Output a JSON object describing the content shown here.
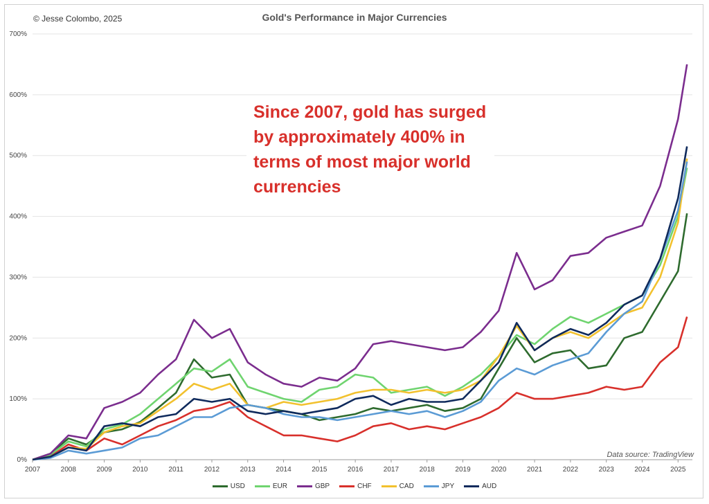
{
  "credit": "© Jesse Colombo, 2025",
  "annotation": "Since 2007, gold has surged by approximately 400% in terms of most major world currencies",
  "source_note": "Data source: TradingView",
  "chart_data": {
    "type": "line",
    "title": "Gold's Performance in Major Currencies",
    "xlabel": "",
    "ylabel": "",
    "xlim": [
      2007,
      2025.4
    ],
    "ylim": [
      0,
      700
    ],
    "x_ticks": [
      "2007",
      "2008",
      "2009",
      "2010",
      "2011",
      "2012",
      "2013",
      "2014",
      "2015",
      "2016",
      "2017",
      "2018",
      "2019",
      "2020",
      "2021",
      "2022",
      "2023",
      "2024",
      "2025"
    ],
    "y_ticks": [
      "0%",
      "100%",
      "200%",
      "300%",
      "400%",
      "500%",
      "600%",
      "700%"
    ],
    "grid": "horizontal",
    "legend_position": "bottom",
    "x": [
      2007,
      2007.5,
      2008,
      2008.5,
      2009,
      2009.5,
      2010,
      2010.5,
      2011,
      2011.5,
      2012,
      2012.5,
      2013,
      2013.5,
      2014,
      2014.5,
      2015,
      2015.5,
      2016,
      2016.5,
      2017,
      2017.5,
      2018,
      2018.5,
      2019,
      2019.5,
      2020,
      2020.5,
      2021,
      2021.5,
      2022,
      2022.5,
      2023,
      2023.5,
      2024,
      2024.5,
      2025,
      2025.25
    ],
    "series": [
      {
        "name": "USD",
        "color": "#2e6b2e",
        "values": [
          0,
          10,
          35,
          25,
          45,
          50,
          62,
          85,
          110,
          165,
          135,
          140,
          90,
          85,
          80,
          75,
          65,
          70,
          75,
          85,
          80,
          85,
          90,
          80,
          85,
          100,
          150,
          200,
          160,
          175,
          180,
          150,
          155,
          200,
          210,
          260,
          310,
          405
        ]
      },
      {
        "name": "EUR",
        "color": "#6fd46f",
        "values": [
          0,
          8,
          30,
          22,
          50,
          58,
          75,
          100,
          125,
          150,
          145,
          165,
          120,
          110,
          100,
          95,
          115,
          120,
          140,
          135,
          110,
          115,
          120,
          105,
          120,
          140,
          170,
          205,
          190,
          215,
          235,
          225,
          240,
          255,
          270,
          320,
          400,
          480
        ]
      },
      {
        "name": "GBP",
        "color": "#7b2d8e",
        "values": [
          0,
          10,
          40,
          35,
          85,
          95,
          110,
          140,
          165,
          230,
          200,
          215,
          160,
          140,
          125,
          120,
          135,
          130,
          150,
          190,
          195,
          190,
          185,
          180,
          185,
          210,
          245,
          340,
          280,
          295,
          335,
          340,
          365,
          375,
          385,
          450,
          560,
          650
        ]
      },
      {
        "name": "CHF",
        "color": "#d8302b",
        "values": [
          0,
          5,
          25,
          15,
          35,
          25,
          40,
          55,
          65,
          80,
          85,
          95,
          70,
          55,
          40,
          40,
          35,
          30,
          40,
          55,
          60,
          50,
          55,
          50,
          60,
          70,
          85,
          110,
          100,
          100,
          105,
          110,
          120,
          115,
          120,
          160,
          185,
          235
        ]
      },
      {
        "name": "CAD",
        "color": "#f2c12e",
        "values": [
          0,
          5,
          20,
          18,
          45,
          55,
          60,
          80,
          100,
          125,
          115,
          125,
          90,
          85,
          95,
          90,
          95,
          100,
          110,
          115,
          115,
          110,
          115,
          110,
          115,
          130,
          170,
          220,
          180,
          200,
          210,
          200,
          220,
          240,
          250,
          300,
          390,
          495
        ]
      },
      {
        "name": "JPY",
        "color": "#5b9bd5",
        "values": [
          0,
          3,
          15,
          10,
          15,
          20,
          35,
          40,
          55,
          70,
          70,
          85,
          90,
          85,
          75,
          70,
          70,
          65,
          70,
          75,
          80,
          75,
          80,
          70,
          80,
          95,
          130,
          150,
          140,
          155,
          165,
          175,
          210,
          240,
          260,
          330,
          410,
          490
        ]
      },
      {
        "name": "AUD",
        "color": "#0f2a5c",
        "values": [
          0,
          5,
          20,
          15,
          55,
          60,
          55,
          70,
          75,
          100,
          95,
          100,
          80,
          75,
          80,
          75,
          80,
          85,
          100,
          105,
          90,
          100,
          95,
          95,
          100,
          130,
          160,
          225,
          180,
          200,
          215,
          205,
          225,
          255,
          270,
          330,
          430,
          515
        ]
      }
    ]
  }
}
